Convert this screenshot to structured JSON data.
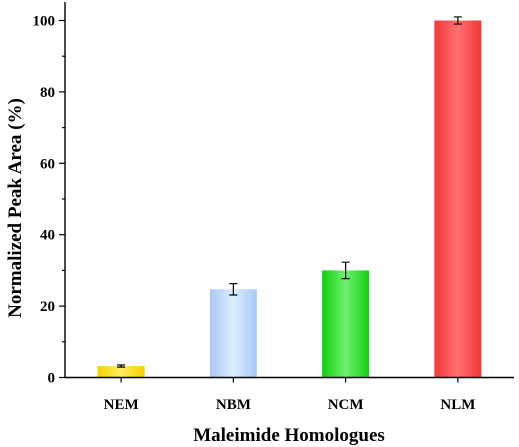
{
  "chart_data": {
    "type": "bar",
    "categories": [
      "NEM",
      "NBM",
      "NCM",
      "NLM"
    ],
    "values": [
      3.2,
      24.7,
      30.0,
      100.0
    ],
    "errors": [
      0.3,
      1.6,
      2.3,
      1.0
    ],
    "bar_colors": [
      [
        "#f7d000",
        "#ffee60"
      ],
      [
        "#a8c8f8",
        "#dceeff"
      ],
      [
        "#10d010",
        "#70f070"
      ],
      [
        "#f03838",
        "#ff7070"
      ]
    ],
    "title": "",
    "xlabel": "Maleimide Homologues",
    "ylabel": "Normalized Peak Area (%)",
    "ylim": [
      0,
      105
    ],
    "yticks": [
      0,
      20,
      40,
      60,
      80,
      100
    ],
    "grid": false,
    "legend": "none"
  }
}
